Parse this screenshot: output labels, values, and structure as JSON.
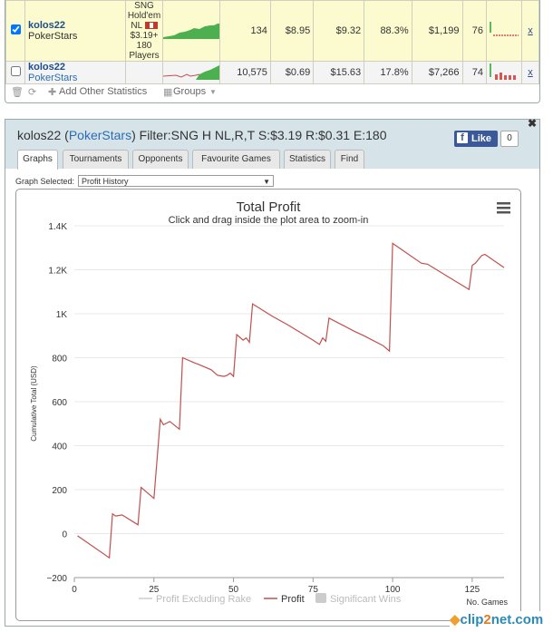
{
  "top_table": {
    "rows": [
      {
        "checked": true,
        "player": "kolos22",
        "site": "PokerStars",
        "game": [
          "SNG",
          "Hold'em",
          "NL",
          "$3.19+",
          "180",
          "Players"
        ],
        "games": "134",
        "avg_buyin": "$8.95",
        "avg_profit": "$9.32",
        "roi": "88.3%",
        "profit": "$1,199",
        "ability": "76",
        "delete": "x"
      },
      {
        "checked": false,
        "player": "kolos22",
        "site": "PokerStars",
        "game": [],
        "games": "10,575",
        "avg_buyin": "$0.69",
        "avg_profit": "$15.63",
        "roi": "17.8%",
        "profit": "$7,266",
        "ability": "74",
        "delete": "x"
      }
    ],
    "toolbar": {
      "add_stats": "Add Other Statistics",
      "groups": "Groups"
    }
  },
  "panel": {
    "player": "kolos22",
    "site": "PokerStars",
    "filter_text": "Filter:SNG H NL,R,T S:$3.19 R:$0.31 E:180",
    "like_label": "Like",
    "like_count": "0",
    "tabs": [
      "Graphs",
      "Tournaments",
      "Opponents",
      "Favourite Games",
      "Statistics",
      "Find"
    ],
    "active_tab": "Graphs",
    "graph_selected_label": "Graph Selected:",
    "graph_selected_value": "Profit History"
  },
  "chart_data": {
    "type": "line",
    "title": "Total Profit",
    "subtitle": "Click and drag inside the plot area to zoom-in",
    "ylabel": "Cumulative Total (USD)",
    "xlabel": "No. Games",
    "xlim": [
      0,
      135
    ],
    "ylim": [
      -200,
      1400
    ],
    "x_ticks": [
      0,
      25,
      50,
      75,
      100,
      125
    ],
    "y_ticks": [
      -200,
      0,
      200,
      400,
      600,
      800,
      1000,
      1200,
      1400
    ],
    "y_tick_labels": [
      "−200",
      "0",
      "200",
      "400",
      "600",
      "800",
      "1K",
      "1.2K",
      "1.4K"
    ],
    "legend": [
      "Profit Excluding Rake",
      "Profit",
      "Significant Wins"
    ],
    "series": [
      {
        "name": "Profit",
        "color": "#c0504d",
        "points": [
          [
            1,
            -10
          ],
          [
            11,
            -110
          ],
          [
            12,
            90
          ],
          [
            13,
            80
          ],
          [
            15,
            85
          ],
          [
            20,
            40
          ],
          [
            21,
            210
          ],
          [
            25,
            160
          ],
          [
            27,
            520
          ],
          [
            28,
            495
          ],
          [
            30,
            510
          ],
          [
            33,
            475
          ],
          [
            34,
            800
          ],
          [
            38,
            775
          ],
          [
            39,
            770
          ],
          [
            43,
            745
          ],
          [
            45,
            720
          ],
          [
            47,
            715
          ],
          [
            48,
            720
          ],
          [
            49,
            730
          ],
          [
            50,
            715
          ],
          [
            51,
            905
          ],
          [
            53,
            880
          ],
          [
            54,
            890
          ],
          [
            55,
            870
          ],
          [
            56,
            1045
          ],
          [
            62,
            990
          ],
          [
            67,
            950
          ],
          [
            75,
            880
          ],
          [
            77,
            860
          ],
          [
            78,
            890
          ],
          [
            79,
            875
          ],
          [
            80,
            980
          ],
          [
            88,
            920
          ],
          [
            91,
            900
          ],
          [
            97,
            855
          ],
          [
            99,
            830
          ],
          [
            100,
            1320
          ],
          [
            109,
            1230
          ],
          [
            111,
            1225
          ],
          [
            124,
            1110
          ],
          [
            125,
            1220
          ],
          [
            126,
            1230
          ],
          [
            128,
            1265
          ],
          [
            129,
            1270
          ],
          [
            135,
            1210
          ]
        ]
      }
    ]
  },
  "watermark": {
    "text1": "clip",
    "text2": "2",
    "text3": "net.com"
  }
}
